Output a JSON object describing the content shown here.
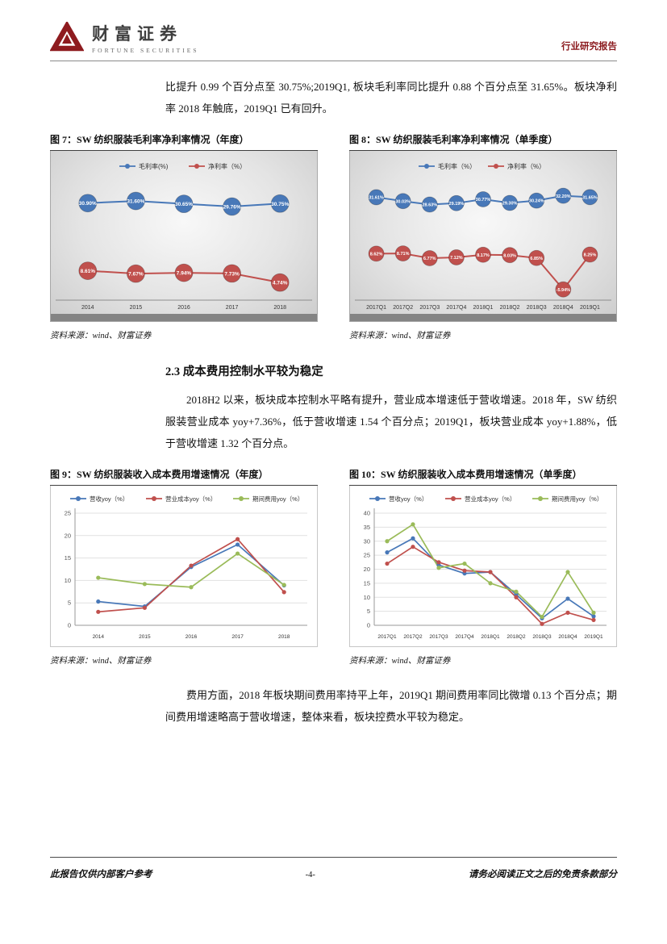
{
  "header": {
    "logo_cn": "财富证券",
    "logo_en": "FORTUNE SECURITIES",
    "report_type": "行业研究报告"
  },
  "intro": {
    "text": "比提升 0.99 个百分点至 30.75%;2019Q1, 板块毛利率同比提升 0.88 个百分点至 31.65%。板块净利率 2018 年触底，2019Q1 已有回升。"
  },
  "section23": {
    "heading": "2.3 成本费用控制水平较为稳定",
    "para": "2018H2 以来，板块成本控制水平略有提升，营业成本增速低于营收增速。2018 年，SW 纺织服装营业成本 yoy+7.36%，低于营收增速 1.54 个百分点；2019Q1，板块营业成本 yoy+1.88%，低于营收增速 1.32 个百分点。"
  },
  "closing": {
    "para": "费用方面，2018 年板块期间费用率持平上年，2019Q1 期间费用率同比微增 0.13 个百分点；期间费用增速略高于营收增速，整体来看，板块控费水平较为稳定。"
  },
  "figures": {
    "source": "资料来源：wind、财富证券"
  },
  "chart_data": [
    {
      "id": "fig7",
      "type": "line",
      "title": "图 7：SW 纺织服装毛利率净利率情况（年度）",
      "style": "gray",
      "legend_position": "top",
      "grid": false,
      "marker": "labeled-circle",
      "categories": [
        "2014",
        "2015",
        "2016",
        "2017",
        "2018"
      ],
      "series": [
        {
          "name": "毛利率(%)",
          "color": "#4878B8",
          "values": [
            30.9,
            31.6,
            30.65,
            29.76,
            30.75
          ],
          "labels": [
            "30.90%",
            "31.60%",
            "30.65%",
            "29.76%",
            "30.75%"
          ]
        },
        {
          "name": "净利率（%）",
          "color": "#C0504D",
          "values": [
            8.61,
            7.67,
            7.94,
            7.73,
            4.74
          ],
          "labels": [
            "8.61%",
            "7.67%",
            "7.94%",
            "7.73%",
            "4.74%"
          ]
        }
      ],
      "ylim": [
        0,
        38
      ]
    },
    {
      "id": "fig8",
      "type": "line",
      "title": "图 8：SW 纺织服装毛利率净利率情况（单季度）",
      "style": "gray",
      "legend_position": "top",
      "grid": false,
      "marker": "labeled-circle",
      "categories": [
        "2017Q1",
        "2017Q2",
        "2017Q3",
        "2017Q4",
        "2018Q1",
        "2018Q2",
        "2018Q3",
        "2018Q4",
        "2019Q1"
      ],
      "series": [
        {
          "name": "毛利率（%）",
          "color": "#4878B8",
          "values": [
            31.61,
            30.03,
            28.63,
            29.19,
            30.77,
            29.3,
            30.24,
            32.2,
            31.65
          ],
          "labels": [
            "31.61%",
            "30.03%",
            "28.63%",
            "29.19%",
            "30.77%",
            "29.30%",
            "30.24%",
            "32.20%",
            "31.65%"
          ]
        },
        {
          "name": "净利率（%）",
          "color": "#C0504D",
          "values": [
            8.62,
            8.71,
            6.77,
            7.12,
            8.17,
            8.03,
            6.85,
            -5.94,
            8.25
          ],
          "labels": [
            "8.62%",
            "8.71%",
            "6.77%",
            "7.12%",
            "8.17%",
            "8.03%",
            "6.85%",
            "-5.94%",
            "8.25%"
          ]
        }
      ],
      "ylim": [
        -9,
        38
      ]
    },
    {
      "id": "fig9",
      "type": "line",
      "title": "图 9：SW 纺织服装收入成本费用增速情况（年度）",
      "style": "white",
      "legend_position": "top",
      "grid": true,
      "marker": "dot",
      "categories": [
        "2014",
        "2015",
        "2016",
        "2017",
        "2018"
      ],
      "series": [
        {
          "name": "营收yoy（%）",
          "color": "#4878B8",
          "values": [
            5.3,
            4.2,
            13.0,
            18.0,
            8.9
          ]
        },
        {
          "name": "营业成本yoy（%）",
          "color": "#C0504D",
          "values": [
            3.0,
            3.9,
            13.3,
            19.2,
            7.4
          ]
        },
        {
          "name": "期间费用yoy（%）",
          "color": "#9ABB59",
          "values": [
            10.6,
            9.2,
            8.5,
            16.0,
            9.0
          ]
        }
      ],
      "ylim": [
        0,
        25
      ],
      "yticks": [
        0,
        5,
        10,
        15,
        20,
        25
      ]
    },
    {
      "id": "fig10",
      "type": "line",
      "title": "图 10：SW 纺织服装收入成本费用增速情况（单季度）",
      "style": "white",
      "legend_position": "top",
      "grid": true,
      "marker": "dot",
      "categories": [
        "2017Q1",
        "2017Q2",
        "2017Q3",
        "2017Q4",
        "2018Q1",
        "2018Q2",
        "2018Q3",
        "2018Q4",
        "2019Q1"
      ],
      "series": [
        {
          "name": "营收yoy（%）",
          "color": "#4878B8",
          "values": [
            26.0,
            31.0,
            21.5,
            18.5,
            19.0,
            11.0,
            2.5,
            9.5,
            3.2
          ]
        },
        {
          "name": "营业成本yoy（%）",
          "color": "#C0504D",
          "values": [
            22.0,
            28.0,
            22.5,
            19.5,
            19.0,
            10.0,
            0.5,
            4.5,
            1.9
          ]
        },
        {
          "name": "期间费用yoy（%）",
          "color": "#9ABB59",
          "values": [
            30.0,
            36.0,
            20.5,
            22.0,
            15.0,
            12.0,
            3.0,
            19.0,
            4.5
          ]
        }
      ],
      "ylim": [
        0,
        40
      ],
      "yticks": [
        0,
        5,
        10,
        15,
        20,
        25,
        30,
        35,
        40
      ]
    }
  ],
  "footer": {
    "left": "此报告仅供内部客户参考",
    "page": "-4-",
    "right": "请务必阅读正文之后的免责条款部分"
  },
  "colors": {
    "brand_red": "#8B1A1E",
    "series_blue": "#4878B8",
    "series_red": "#C0504D",
    "series_green": "#9ABB59"
  }
}
